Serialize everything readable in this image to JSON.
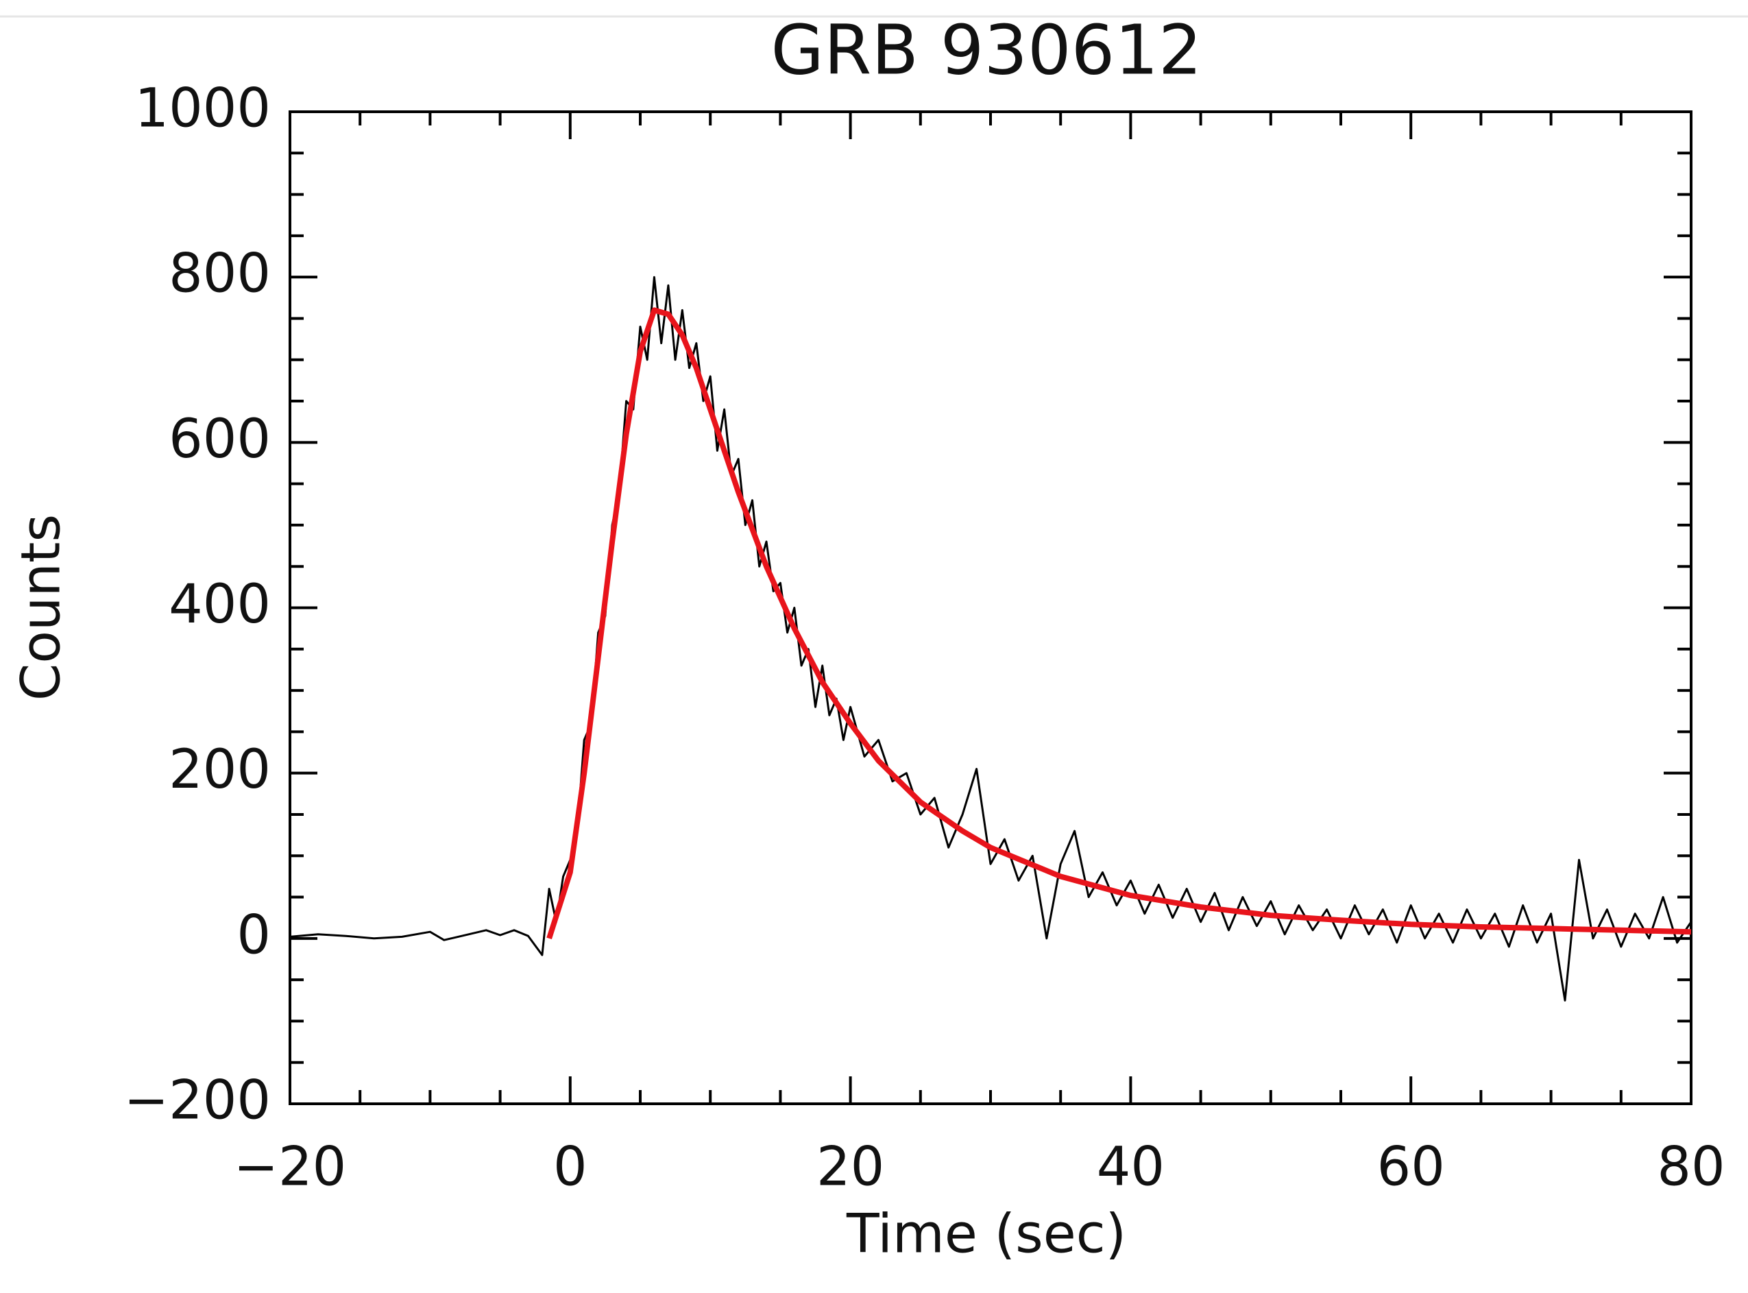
{
  "chart_data": {
    "type": "line",
    "title": "GRB 930612",
    "x_label": "Time (sec)",
    "y_label": "Counts",
    "xlim": [
      -20,
      80
    ],
    "xticks": [
      {
        "value": -20,
        "label": "−20"
      },
      0,
      20,
      40,
      60,
      80
    ],
    "xminorticks": [
      -15,
      -10,
      -5,
      5,
      10,
      15,
      25,
      30,
      35,
      45,
      50,
      55,
      65,
      70,
      75
    ],
    "ylim": [
      -200,
      1000
    ],
    "yticks": [
      {
        "value": -200,
        "label": "−200"
      },
      0,
      200,
      400,
      600,
      800,
      1000
    ],
    "yminorticks": [
      -150,
      -100,
      -50,
      50,
      100,
      150,
      250,
      300,
      350,
      450,
      500,
      550,
      650,
      700,
      750,
      850,
      900,
      950
    ],
    "series": [
      {
        "color": "#000000",
        "x": [
          -20,
          -18,
          -16,
          -14,
          -12,
          -10,
          -9,
          -8,
          -6,
          -5,
          -4,
          -3,
          -2,
          -1.5,
          -1,
          -0.5,
          0,
          0.5,
          1,
          1.5,
          2,
          2.5,
          3,
          3.5,
          4,
          4.5,
          5,
          5.5,
          6,
          6.5,
          7,
          7.5,
          8,
          8.5,
          9,
          9.5,
          10,
          10.5,
          11,
          11.5,
          12,
          12.5,
          13,
          13.5,
          14,
          14.5,
          15,
          15.5,
          16,
          16.5,
          17,
          17.5,
          18,
          18.5,
          19,
          19.5,
          20,
          21,
          22,
          23,
          24,
          25,
          26,
          27,
          28,
          29,
          30,
          31,
          32,
          33,
          34,
          35,
          36,
          37,
          38,
          39,
          40,
          41,
          42,
          43,
          44,
          45,
          46,
          47,
          48,
          49,
          50,
          51,
          52,
          53,
          54,
          55,
          56,
          57,
          58,
          59,
          60,
          61,
          62,
          63,
          64,
          65,
          66,
          67,
          68,
          69,
          70,
          71,
          72,
          73,
          74,
          75,
          76,
          77,
          78,
          79,
          80
        ],
        "values": [
          2,
          5,
          3,
          0,
          2,
          8,
          -2,
          2,
          10,
          4,
          10,
          3,
          -20,
          60,
          20,
          75,
          95,
          130,
          240,
          260,
          370,
          390,
          500,
          540,
          650,
          640,
          740,
          700,
          800,
          720,
          790,
          700,
          760,
          690,
          720,
          650,
          680,
          590,
          640,
          560,
          580,
          500,
          530,
          450,
          480,
          420,
          430,
          370,
          400,
          330,
          350,
          280,
          330,
          270,
          290,
          240,
          280,
          220,
          240,
          190,
          200,
          150,
          170,
          110,
          150,
          205,
          90,
          120,
          70,
          100,
          0,
          90,
          130,
          50,
          80,
          40,
          70,
          30,
          65,
          25,
          60,
          20,
          55,
          10,
          50,
          15,
          45,
          5,
          40,
          10,
          35,
          0,
          40,
          5,
          35,
          -5,
          40,
          0,
          30,
          -5,
          35,
          0,
          30,
          -10,
          40,
          -5,
          30,
          -75,
          95,
          0,
          35,
          -10,
          30,
          0,
          50,
          -5,
          20
        ]
      },
      {
        "color": "#e8141b",
        "x": [
          -1.5,
          0,
          1,
          2,
          3,
          4,
          5,
          6,
          7,
          8,
          9,
          10,
          12,
          14,
          16,
          18,
          20,
          22,
          25,
          28,
          30,
          35,
          40,
          45,
          50,
          55,
          60,
          65,
          70,
          75,
          80
        ],
        "values": [
          0,
          80,
          200,
          340,
          480,
          610,
          710,
          760,
          755,
          730,
          690,
          640,
          540,
          450,
          375,
          310,
          260,
          215,
          165,
          130,
          110,
          75,
          52,
          38,
          28,
          22,
          17,
          14,
          12,
          10,
          8
        ]
      }
    ]
  }
}
